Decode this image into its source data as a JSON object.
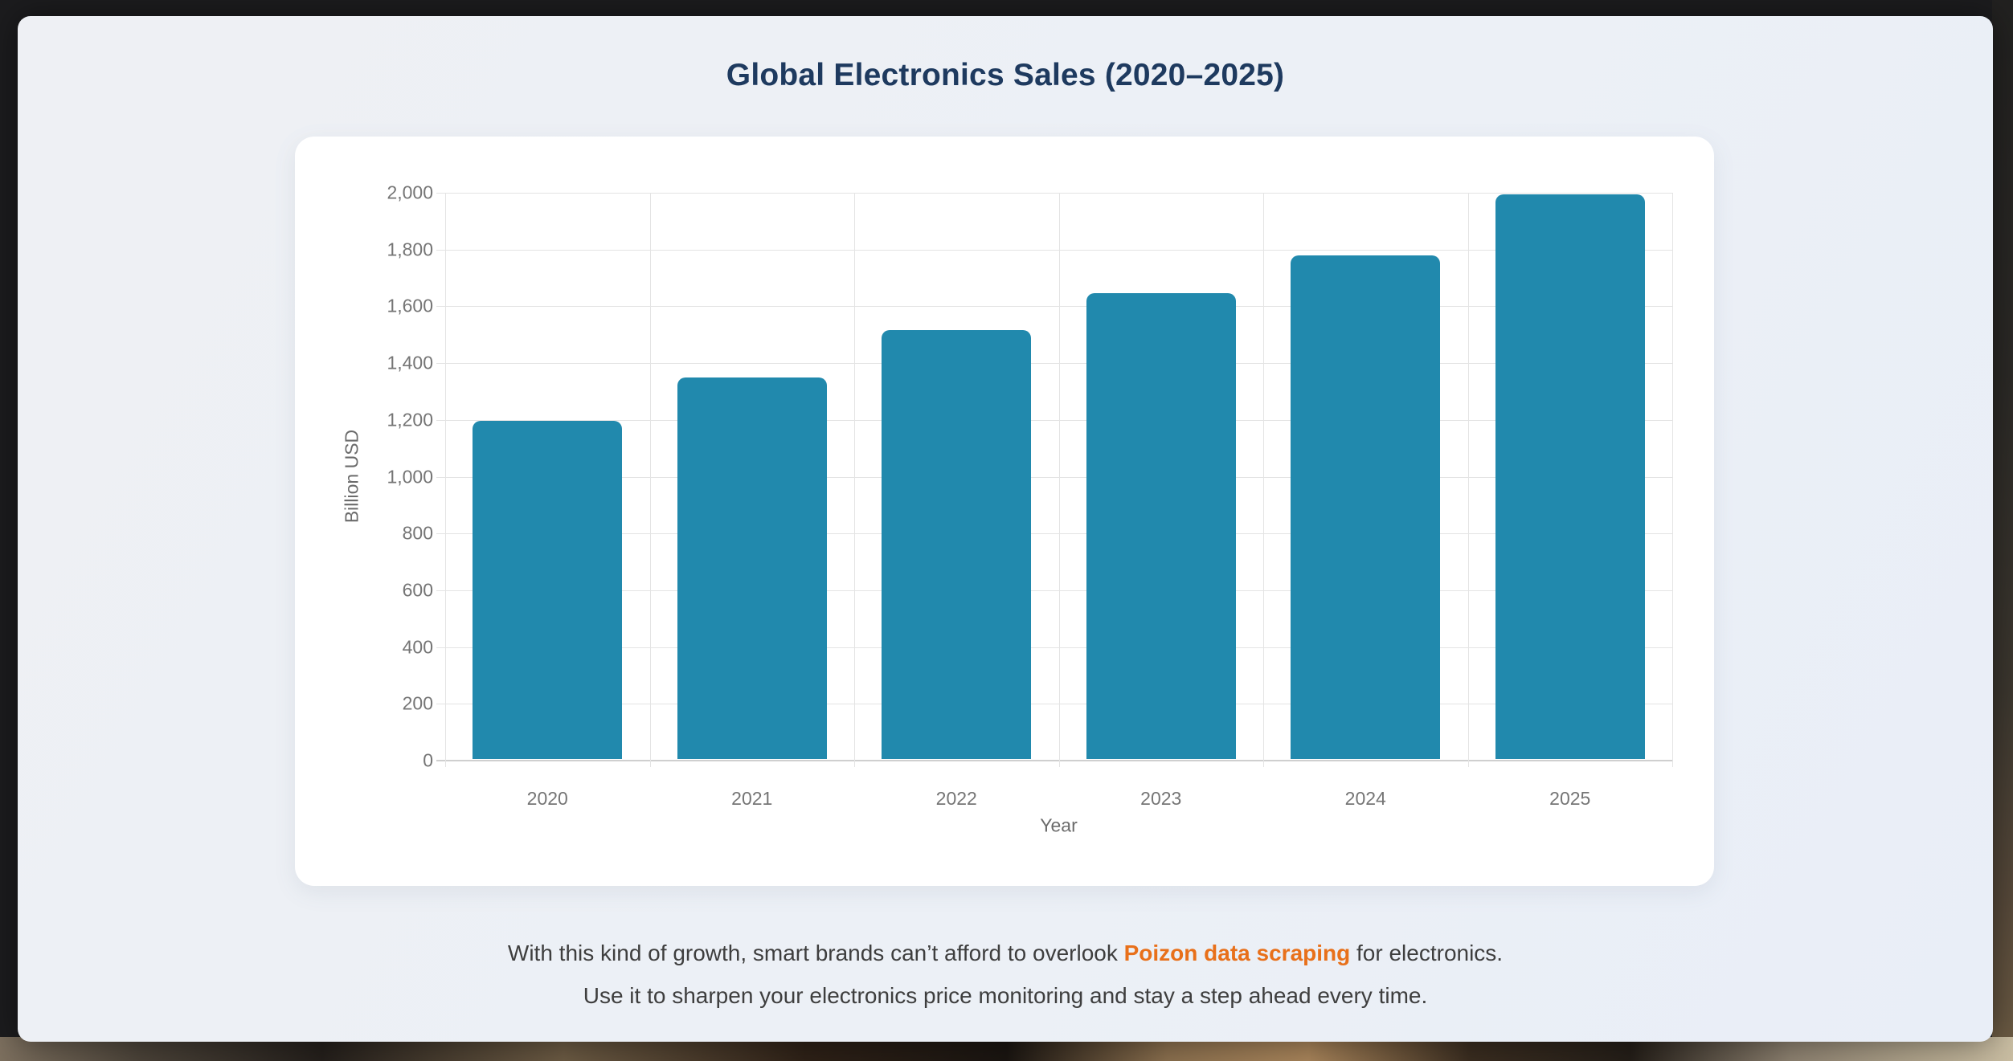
{
  "page": {
    "title": "Global Electronics Sales (2020–2025)"
  },
  "chart_data": {
    "type": "bar",
    "title": "Global Electronics Sales (2020–2025)",
    "categories": [
      "2020",
      "2021",
      "2022",
      "2023",
      "2024",
      "2025"
    ],
    "values": [
      1190,
      1345,
      1510,
      1640,
      1775,
      1990
    ],
    "xlabel": "Year",
    "ylabel": "Billion USD",
    "ylim": [
      0,
      2000
    ],
    "ytick_step": 200,
    "ytick_labels": [
      "0",
      "200",
      "400",
      "600",
      "800",
      "1,000",
      "1,200",
      "1,400",
      "1,600",
      "1,800",
      "2,000"
    ],
    "grid": true,
    "legend_position": "none",
    "bar_color": "#2189ad",
    "gridline_color": "#e4e4e4",
    "axis_text_color": "#757575"
  },
  "footer": {
    "line1_prefix": "With this kind of growth, smart brands can’t afford to overlook ",
    "link_text": "Poizon data scraping",
    "line1_suffix": " for electronics.",
    "line2": "Use it to sharpen your electronics price monitoring and stay a step ahead every time.",
    "link_color": "#e8701a"
  }
}
